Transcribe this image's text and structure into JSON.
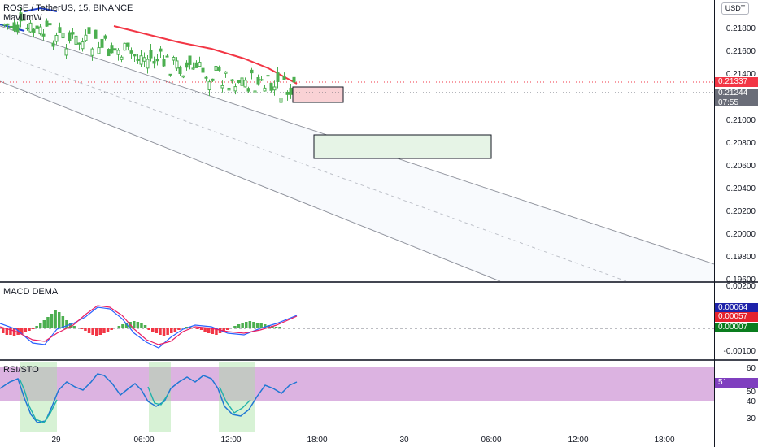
{
  "header": {
    "symbol_title": "ROSE / TetherUS, 15, BINANCE",
    "ma_title": "MavilimW",
    "currency": "USDT"
  },
  "price_axis": {
    "ticks": [
      "0.21800",
      "0.21600",
      "0.21400",
      "0.21000",
      "0.20800",
      "0.20600",
      "0.20400",
      "0.20200",
      "0.20000",
      "0.19800",
      "0.19600"
    ],
    "current_red": "0.21337",
    "current_gray": "0.21244",
    "countdown": "07:55"
  },
  "macd": {
    "title": "MACD DEMA",
    "ticks": [
      "0.00200",
      "-0.00100"
    ],
    "macd_value": "0.00064",
    "signal_value": "0.00057",
    "hist_value": "0.00007"
  },
  "rsi": {
    "title": "RSI/STO",
    "ticks": [
      "60",
      "50",
      "40",
      "30"
    ],
    "value": "51"
  },
  "time_axis": {
    "labels": [
      "29",
      "06:00",
      "12:00",
      "18:00",
      "30",
      "06:00",
      "12:00",
      "18:00"
    ]
  },
  "colors": {
    "bull": "#22ab94",
    "bear": "#26a69a",
    "candle": "#4caf50",
    "ma": "#f23645",
    "macd_line": "#2962ff",
    "signal_line": "#e91e63",
    "rsi_band": "#d6a6dc",
    "rsi_line": "#1f77d4"
  }
}
